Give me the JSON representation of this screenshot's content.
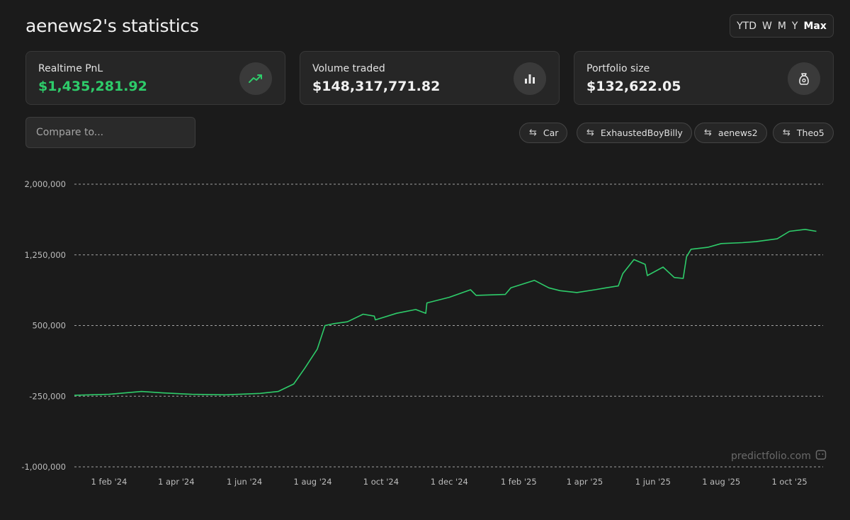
{
  "header": {
    "title": "aenews2's statistics",
    "ranges": [
      "YTD",
      "W",
      "M",
      "Y",
      "Max"
    ],
    "active_range": "Max"
  },
  "cards": [
    {
      "label": "Realtime PnL",
      "value": "$1,435,281.92",
      "value_color": "#2ecc6a",
      "icon": "trending-up-icon"
    },
    {
      "label": "Volume traded",
      "value": "$148,317,771.82",
      "value_color": "#f1f1f1",
      "icon": "bar-chart-icon"
    },
    {
      "label": "Portfolio size",
      "value": "$132,622.05",
      "value_color": "#f1f1f1",
      "icon": "money-bag-icon"
    }
  ],
  "compare": {
    "placeholder": "Compare to..."
  },
  "chips": [
    {
      "label": "Car",
      "icon": "swap-arrows-icon"
    },
    {
      "label": "ExhaustedBoyBilly",
      "icon": "swap-arrows-icon"
    },
    {
      "label": "aenews2",
      "icon": "swap-arrows-icon"
    },
    {
      "label": "Theo5",
      "icon": "swap-arrows-icon"
    }
  ],
  "watermark": "predictfolio.com",
  "colors": {
    "line": "#2ecc6a",
    "accent": "#2ecc6a",
    "background": "#1b1b1b"
  },
  "chart_data": {
    "type": "line",
    "title": "",
    "xlabel": "",
    "ylabel": "",
    "ylim": [
      -1000000,
      2000000
    ],
    "yticks": [
      2000000,
      1250000,
      500000,
      -250000,
      -1000000
    ],
    "ytick_labels": [
      "2,000,000",
      "1,250,000",
      "500,000",
      "-250,000",
      "-1,000,000"
    ],
    "xlim": [
      "2024-01-01",
      "2025-10-31"
    ],
    "xticks": [
      "2024-02-01",
      "2024-04-01",
      "2024-06-01",
      "2024-08-01",
      "2024-10-01",
      "2024-12-01",
      "2025-02-01",
      "2025-04-01",
      "2025-06-01",
      "2025-08-01",
      "2025-10-01"
    ],
    "xtick_labels": [
      "1 feb '24",
      "1 apr '24",
      "1 jun '24",
      "1 aug '24",
      "1 oct '24",
      "1 dec '24",
      "1 feb '25",
      "1 apr '25",
      "1 jun '25",
      "1 aug '25",
      "1 oct '25"
    ],
    "grid": "horizontal-dashed",
    "series": [
      {
        "x": [
          "2024-01-01",
          "2024-02-01",
          "2024-03-01",
          "2024-03-20",
          "2024-04-15",
          "2024-05-15",
          "2024-06-15",
          "2024-07-01",
          "2024-07-15",
          "2024-07-25",
          "2024-08-05",
          "2024-08-12",
          "2024-08-20",
          "2024-09-01",
          "2024-09-15",
          "2024-09-25",
          "2024-09-26",
          "2024-10-15",
          "2024-11-01",
          "2024-11-10",
          "2024-11-11",
          "2024-12-01",
          "2024-12-20",
          "2024-12-25",
          "2025-01-20",
          "2025-01-25",
          "2025-02-15",
          "2025-02-28",
          "2025-03-10",
          "2025-03-25",
          "2025-04-10",
          "2025-04-20",
          "2025-05-01",
          "2025-05-05",
          "2025-05-15",
          "2025-05-25",
          "2025-05-27",
          "2025-06-10",
          "2025-06-20",
          "2025-06-28",
          "2025-07-01",
          "2025-07-05",
          "2025-07-20",
          "2025-08-01",
          "2025-08-20",
          "2025-09-01",
          "2025-09-20",
          "2025-10-01",
          "2025-10-15",
          "2025-10-25"
        ],
        "y": [
          -240000,
          -230000,
          -200000,
          -215000,
          -230000,
          -235000,
          -220000,
          -200000,
          -120000,
          50000,
          250000,
          500000,
          520000,
          540000,
          620000,
          600000,
          560000,
          630000,
          670000,
          630000,
          740000,
          800000,
          880000,
          820000,
          830000,
          900000,
          980000,
          900000,
          870000,
          850000,
          880000,
          900000,
          920000,
          1050000,
          1200000,
          1150000,
          1030000,
          1120000,
          1010000,
          1000000,
          1230000,
          1310000,
          1330000,
          1370000,
          1380000,
          1390000,
          1420000,
          1500000,
          1520000,
          1500000
        ]
      }
    ]
  }
}
